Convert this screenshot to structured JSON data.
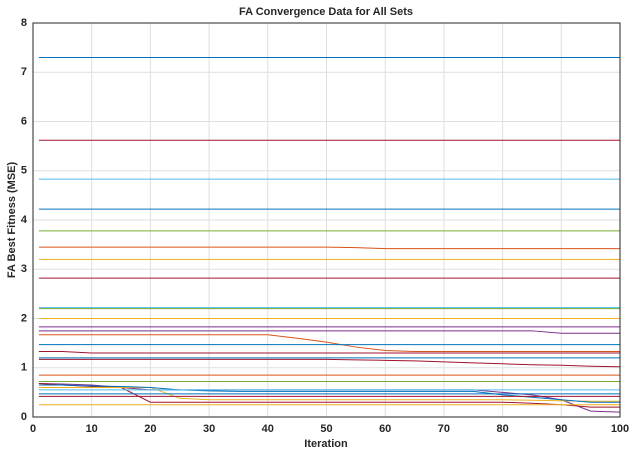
{
  "chart_data": {
    "type": "line",
    "title": "FA Convergence Data for All Sets",
    "x_label": "Iteration",
    "y_label": "FA Best Fitness (MSE)",
    "xlim": [
      0,
      100
    ],
    "ylim": [
      0,
      8
    ],
    "xticks": [
      0,
      10,
      20,
      30,
      40,
      50,
      60,
      70,
      80,
      90,
      100
    ],
    "yticks": [
      0,
      1,
      2,
      3,
      4,
      5,
      6,
      7,
      8
    ],
    "grid": true,
    "x": [
      1,
      5,
      10,
      15,
      20,
      25,
      30,
      35,
      40,
      45,
      50,
      55,
      60,
      65,
      70,
      75,
      80,
      85,
      90,
      95,
      100
    ],
    "series": [
      {
        "color": "#0072BD",
        "values": [
          7.3,
          7.3,
          7.3,
          7.3,
          7.3,
          7.3,
          7.3,
          7.3,
          7.3,
          7.3,
          7.3,
          7.3,
          7.3,
          7.3,
          7.3,
          7.3,
          7.3,
          7.3,
          7.3,
          7.3,
          7.3
        ]
      },
      {
        "color": "#A2142F",
        "values": [
          5.62,
          5.62,
          5.62,
          5.62,
          5.62,
          5.62,
          5.62,
          5.62,
          5.62,
          5.62,
          5.62,
          5.62,
          5.62,
          5.62,
          5.62,
          5.62,
          5.62,
          5.62,
          5.62,
          5.62,
          5.62
        ]
      },
      {
        "color": "#4DBEEE",
        "values": [
          4.83,
          4.83,
          4.83,
          4.83,
          4.83,
          4.83,
          4.83,
          4.83,
          4.83,
          4.83,
          4.83,
          4.83,
          4.83,
          4.83,
          4.83,
          4.83,
          4.83,
          4.83,
          4.83,
          4.83,
          4.83
        ]
      },
      {
        "color": "#0072BD",
        "values": [
          4.22,
          4.22,
          4.22,
          4.22,
          4.22,
          4.22,
          4.22,
          4.22,
          4.22,
          4.22,
          4.22,
          4.22,
          4.22,
          4.22,
          4.22,
          4.22,
          4.22,
          4.22,
          4.22,
          4.22,
          4.22
        ]
      },
      {
        "color": "#77AC30",
        "values": [
          3.78,
          3.78,
          3.78,
          3.78,
          3.78,
          3.78,
          3.78,
          3.78,
          3.78,
          3.78,
          3.78,
          3.78,
          3.78,
          3.78,
          3.78,
          3.78,
          3.78,
          3.78,
          3.78,
          3.78,
          3.78
        ]
      },
      {
        "color": "#D95319",
        "values": [
          3.45,
          3.45,
          3.45,
          3.45,
          3.45,
          3.45,
          3.45,
          3.45,
          3.45,
          3.45,
          3.45,
          3.44,
          3.42,
          3.42,
          3.42,
          3.42,
          3.42,
          3.42,
          3.42,
          3.42,
          3.42
        ]
      },
      {
        "color": "#EDB120",
        "values": [
          3.2,
          3.2,
          3.2,
          3.2,
          3.2,
          3.2,
          3.2,
          3.2,
          3.2,
          3.2,
          3.2,
          3.2,
          3.2,
          3.2,
          3.2,
          3.2,
          3.2,
          3.2,
          3.2,
          3.2,
          3.2
        ]
      },
      {
        "color": "#A2142F",
        "values": [
          2.82,
          2.82,
          2.82,
          2.82,
          2.82,
          2.82,
          2.82,
          2.82,
          2.82,
          2.82,
          2.82,
          2.82,
          2.82,
          2.82,
          2.82,
          2.82,
          2.82,
          2.82,
          2.82,
          2.82,
          2.82
        ]
      },
      {
        "color": "#4DBEEE",
        "values": [
          2.22,
          2.22,
          2.22,
          2.22,
          2.22,
          2.22,
          2.22,
          2.22,
          2.22,
          2.22,
          2.22,
          2.22,
          2.22,
          2.22,
          2.22,
          2.22,
          2.22,
          2.22,
          2.22,
          2.22,
          2.22
        ]
      },
      {
        "color": "#77AC30",
        "values": [
          2.2,
          2.2,
          2.2,
          2.2,
          2.2,
          2.2,
          2.2,
          2.2,
          2.2,
          2.2,
          2.2,
          2.2,
          2.2,
          2.2,
          2.2,
          2.2,
          2.2,
          2.2,
          2.2,
          2.2,
          2.2
        ]
      },
      {
        "color": "#EDB120",
        "values": [
          2.0,
          2.0,
          2.0,
          2.0,
          2.0,
          2.0,
          2.0,
          2.0,
          2.0,
          2.0,
          2.0,
          2.0,
          2.0,
          2.0,
          2.0,
          2.0,
          2.0,
          2.0,
          2.0,
          2.0,
          2.0
        ]
      },
      {
        "color": "#7E2F8E",
        "values": [
          1.83,
          1.83,
          1.83,
          1.83,
          1.83,
          1.83,
          1.83,
          1.83,
          1.83,
          1.83,
          1.83,
          1.83,
          1.83,
          1.83,
          1.83,
          1.83,
          1.83,
          1.83,
          1.83,
          1.83,
          1.83
        ]
      },
      {
        "color": "#7E2F8E",
        "values": [
          1.75,
          1.75,
          1.75,
          1.75,
          1.75,
          1.75,
          1.75,
          1.75,
          1.75,
          1.75,
          1.75,
          1.75,
          1.75,
          1.75,
          1.75,
          1.75,
          1.75,
          1.75,
          1.7,
          1.7,
          1.7
        ]
      },
      {
        "color": "#D95319",
        "values": [
          1.67,
          1.67,
          1.67,
          1.67,
          1.67,
          1.67,
          1.67,
          1.67,
          1.67,
          1.6,
          1.52,
          1.42,
          1.35,
          1.33,
          1.33,
          1.33,
          1.33,
          1.33,
          1.33,
          1.33,
          1.33
        ]
      },
      {
        "color": "#0072BD",
        "values": [
          1.47,
          1.47,
          1.47,
          1.47,
          1.47,
          1.47,
          1.47,
          1.47,
          1.47,
          1.47,
          1.47,
          1.47,
          1.47,
          1.47,
          1.47,
          1.47,
          1.47,
          1.47,
          1.47,
          1.47,
          1.47
        ]
      },
      {
        "color": "#A2142F",
        "values": [
          1.33,
          1.33,
          1.3,
          1.3,
          1.3,
          1.3,
          1.3,
          1.3,
          1.3,
          1.3,
          1.3,
          1.3,
          1.3,
          1.3,
          1.3,
          1.3,
          1.3,
          1.3,
          1.3,
          1.3,
          1.3
        ]
      },
      {
        "color": "#0072BD",
        "values": [
          1.2,
          1.2,
          1.2,
          1.2,
          1.2,
          1.2,
          1.2,
          1.2,
          1.2,
          1.2,
          1.2,
          1.2,
          1.2,
          1.2,
          1.2,
          1.2,
          1.2,
          1.2,
          1.2,
          1.2,
          1.2
        ]
      },
      {
        "color": "#A2142F",
        "values": [
          1.17,
          1.17,
          1.17,
          1.17,
          1.17,
          1.17,
          1.17,
          1.17,
          1.17,
          1.17,
          1.17,
          1.16,
          1.15,
          1.14,
          1.12,
          1.1,
          1.08,
          1.06,
          1.05,
          1.03,
          1.02
        ]
      },
      {
        "color": "#D95319",
        "values": [
          0.85,
          0.85,
          0.85,
          0.85,
          0.85,
          0.85,
          0.85,
          0.85,
          0.85,
          0.85,
          0.85,
          0.85,
          0.85,
          0.85,
          0.85,
          0.85,
          0.85,
          0.85,
          0.85,
          0.85,
          0.85
        ]
      },
      {
        "color": "#77AC30",
        "values": [
          0.72,
          0.72,
          0.72,
          0.72,
          0.72,
          0.72,
          0.72,
          0.72,
          0.72,
          0.72,
          0.72,
          0.72,
          0.72,
          0.72,
          0.72,
          0.72,
          0.72,
          0.72,
          0.72,
          0.72,
          0.72
        ]
      },
      {
        "color": "#7E2F8E",
        "values": [
          0.68,
          0.67,
          0.65,
          0.6,
          0.55,
          0.55,
          0.55,
          0.55,
          0.55,
          0.55,
          0.55,
          0.55,
          0.55,
          0.55,
          0.55,
          0.55,
          0.5,
          0.45,
          0.35,
          0.12,
          0.1
        ]
      },
      {
        "color": "#A2142F",
        "values": [
          0.68,
          0.65,
          0.62,
          0.6,
          0.3,
          0.3,
          0.3,
          0.3,
          0.3,
          0.3,
          0.3,
          0.3,
          0.3,
          0.3,
          0.3,
          0.3,
          0.3,
          0.28,
          0.25,
          0.2,
          0.2
        ]
      },
      {
        "color": "#EDB120",
        "values": [
          0.6,
          0.6,
          0.6,
          0.6,
          0.6,
          0.38,
          0.35,
          0.35,
          0.35,
          0.35,
          0.35,
          0.35,
          0.35,
          0.35,
          0.35,
          0.35,
          0.35,
          0.34,
          0.33,
          0.32,
          0.32
        ]
      },
      {
        "color": "#0072BD",
        "values": [
          0.65,
          0.65,
          0.63,
          0.62,
          0.6,
          0.55,
          0.53,
          0.52,
          0.52,
          0.52,
          0.52,
          0.52,
          0.52,
          0.52,
          0.52,
          0.52,
          0.45,
          0.4,
          0.35,
          0.3,
          0.3
        ]
      },
      {
        "color": "#4DBEEE",
        "values": [
          0.55,
          0.55,
          0.55,
          0.55,
          0.55,
          0.55,
          0.55,
          0.55,
          0.55,
          0.55,
          0.55,
          0.55,
          0.55,
          0.55,
          0.55,
          0.55,
          0.55,
          0.55,
          0.55,
          0.55,
          0.55
        ]
      },
      {
        "color": "#0072BD",
        "values": [
          0.47,
          0.47,
          0.47,
          0.47,
          0.47,
          0.47,
          0.47,
          0.47,
          0.47,
          0.47,
          0.47,
          0.47,
          0.47,
          0.47,
          0.47,
          0.47,
          0.47,
          0.47,
          0.47,
          0.47,
          0.47
        ]
      },
      {
        "color": "#A2142F",
        "values": [
          0.42,
          0.42,
          0.42,
          0.42,
          0.42,
          0.42,
          0.42,
          0.42,
          0.42,
          0.42,
          0.42,
          0.42,
          0.42,
          0.42,
          0.42,
          0.42,
          0.42,
          0.42,
          0.42,
          0.42,
          0.42
        ]
      },
      {
        "color": "#EDB120",
        "values": [
          0.25,
          0.25,
          0.25,
          0.25,
          0.25,
          0.25,
          0.25,
          0.25,
          0.25,
          0.25,
          0.25,
          0.25,
          0.25,
          0.25,
          0.25,
          0.25,
          0.25,
          0.25,
          0.25,
          0.25,
          0.25
        ]
      }
    ]
  }
}
